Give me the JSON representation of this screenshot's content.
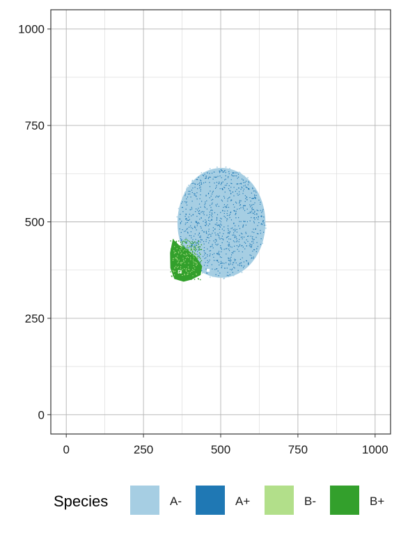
{
  "chart_data": {
    "type": "scatter",
    "title": "",
    "xlabel": "",
    "ylabel": "",
    "xlim": [
      -50,
      1050
    ],
    "ylim": [
      -50,
      1050
    ],
    "x_ticks": [
      0,
      250,
      500,
      750,
      1000
    ],
    "y_ticks": [
      0,
      250,
      500,
      750,
      1000
    ],
    "x_tick_labels": [
      "0",
      "250",
      "500",
      "750",
      "1000"
    ],
    "y_tick_labels": [
      "0",
      "250",
      "500",
      "750",
      "1000"
    ],
    "grid": true,
    "legend": {
      "title": "Species",
      "position": "bottom",
      "entries": [
        "A-",
        "A+",
        "B-",
        "B+"
      ]
    },
    "series": [
      {
        "name": "A-",
        "color": "#a6cee3",
        "shape": "filled ellipse",
        "region": {
          "center": [
            500,
            500
          ],
          "x_range": [
            360,
            645
          ],
          "y_range": [
            355,
            640
          ]
        }
      },
      {
        "name": "A+",
        "color": "#1f78b4",
        "shape": "sparse points inside A- region",
        "region": {
          "center": [
            500,
            500
          ],
          "x_range": [
            360,
            645
          ],
          "y_range": [
            355,
            640
          ]
        }
      },
      {
        "name": "B-",
        "color": "#b2df8a",
        "shape": "sparse points inside B+ region",
        "region": {
          "center": [
            385,
            405
          ],
          "x_range": [
            335,
            440
          ],
          "y_range": [
            345,
            460
          ]
        }
      },
      {
        "name": "B+",
        "color": "#33a02c",
        "shape": "filled blob",
        "region": {
          "center": [
            385,
            405
          ],
          "x_range": [
            335,
            440
          ],
          "y_range": [
            345,
            460
          ]
        }
      }
    ]
  }
}
